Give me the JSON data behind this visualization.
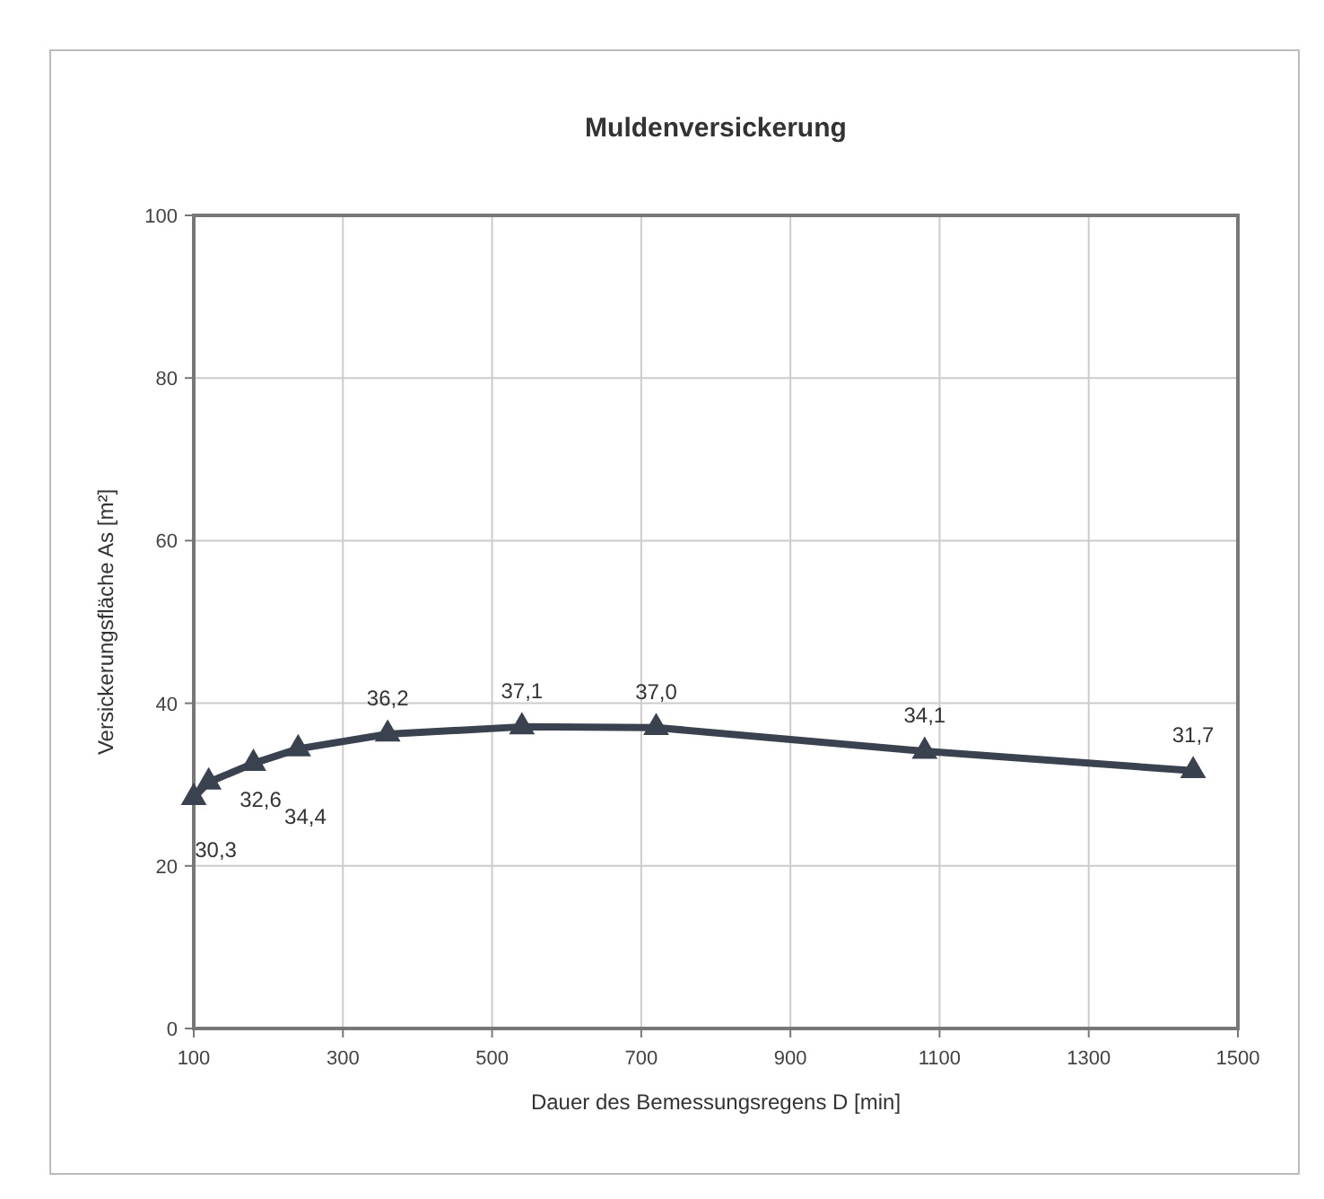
{
  "chart_data": {
    "type": "line",
    "title": "Muldenversickerung",
    "xlabel": "Dauer des Bemessungsregens D [min]",
    "ylabel": "Versickerungsfläche As [m²]",
    "x": [
      100,
      120,
      180,
      240,
      360,
      540,
      720,
      1080,
      1440
    ],
    "series": [
      {
        "color": "#3a4250",
        "values": [
          28.4,
          30.3,
          32.6,
          34.4,
          36.2,
          37.1,
          37.0,
          34.1,
          31.7
        ],
        "value_labels": [
          null,
          "30,3",
          "32,6",
          "34,4",
          "36,2",
          "37,1",
          "37,0",
          "34,1",
          "31,7"
        ]
      }
    ],
    "xlim": [
      100,
      1500
    ],
    "xticks": [
      100,
      300,
      500,
      700,
      900,
      1100,
      1300,
      1500
    ],
    "ylim": [
      0,
      100
    ],
    "yticks": [
      0,
      20,
      40,
      60,
      80,
      100
    ],
    "grid": true,
    "marker": "triangle",
    "line_style": "solid"
  }
}
